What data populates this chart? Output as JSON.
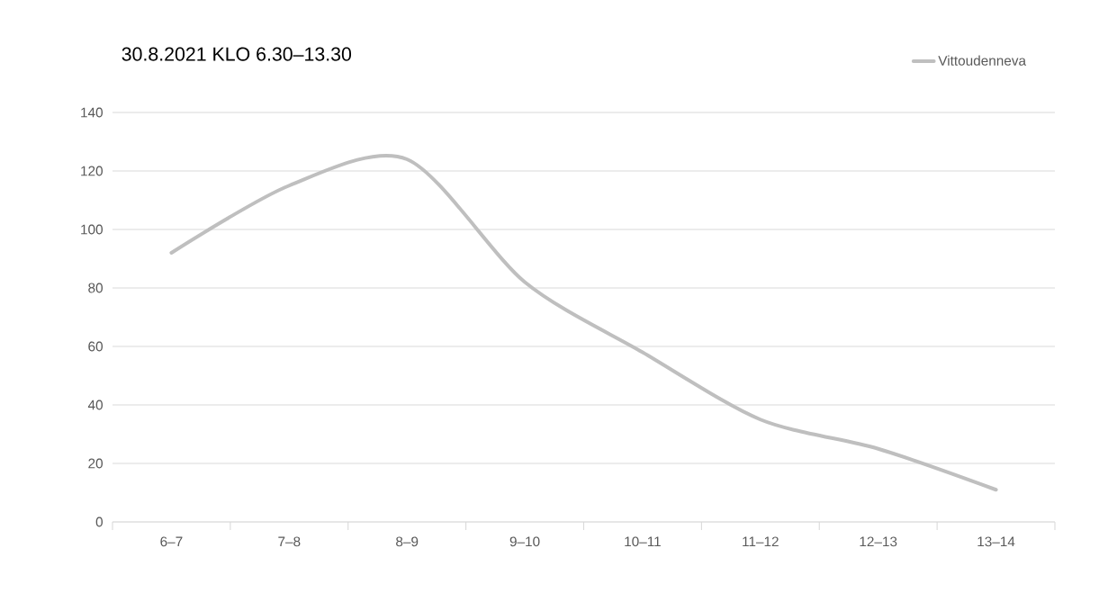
{
  "chart_data": {
    "type": "line",
    "title": "30.8.2021 KLO 6.30–13.30",
    "categories": [
      "6–7",
      "7–8",
      "8–9",
      "9–10",
      "10–11",
      "11–12",
      "12–13",
      "13–14"
    ],
    "series": [
      {
        "name": "Vittoudenneva",
        "color": "#bfbfbf",
        "values": [
          92,
          115,
          124,
          82,
          58,
          35,
          25,
          11
        ]
      }
    ],
    "ylim": [
      0,
      140
    ],
    "yticks": [
      0,
      20,
      40,
      60,
      80,
      100,
      120,
      140
    ],
    "grid": "y",
    "legend": "top right",
    "marker": "none",
    "line_style": "solid"
  }
}
